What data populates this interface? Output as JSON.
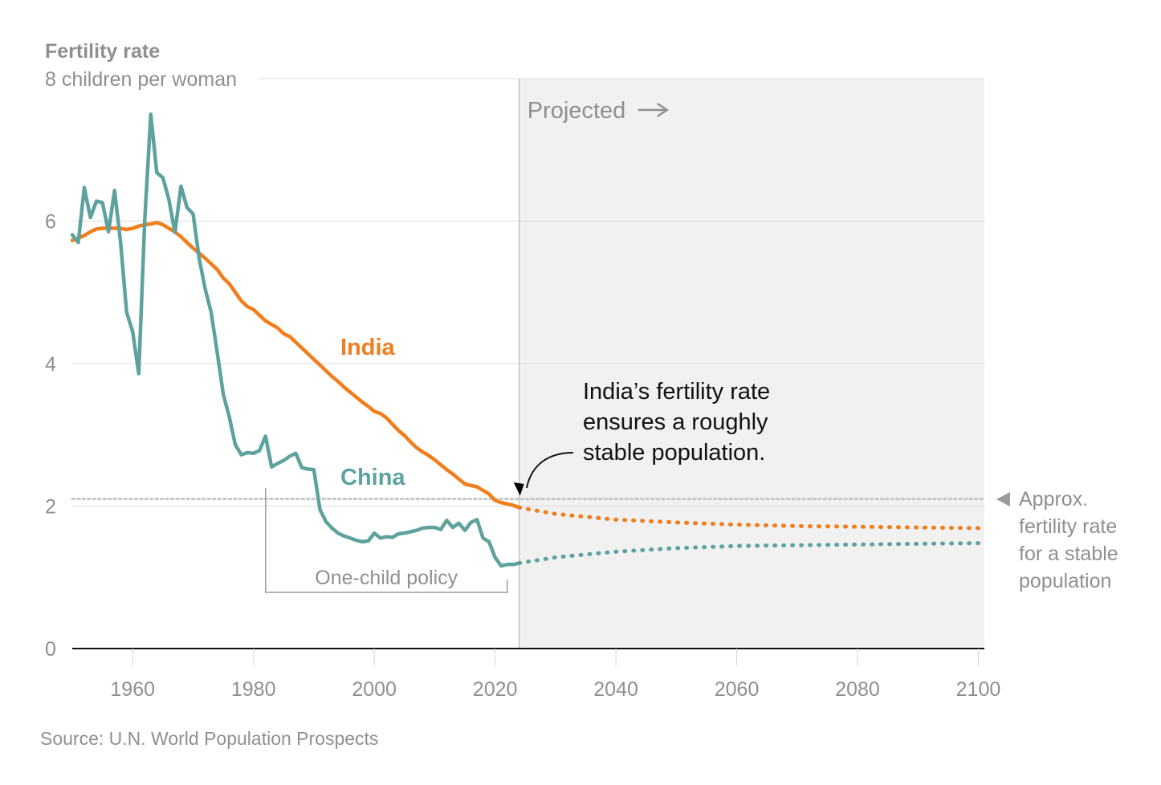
{
  "chart_data": {
    "type": "line",
    "title": "Fertility rate",
    "ylabel": "children per woman",
    "ylim": [
      0,
      8
    ],
    "xlim": [
      1950,
      2101
    ],
    "yticks": [
      {
        "value": 0,
        "label": "0"
      },
      {
        "value": 2,
        "label": "2"
      },
      {
        "value": 4,
        "label": "4"
      },
      {
        "value": 6,
        "label": "6"
      },
      {
        "value": 8,
        "label": "8 children per woman"
      }
    ],
    "xticks": [
      1960,
      1980,
      2000,
      2020,
      2040,
      2060,
      2080,
      2100
    ],
    "projection_start": 2024,
    "projected_label": "Projected",
    "replacement_rate": 2.1,
    "replacement_label": [
      "Approx.",
      "fertility rate",
      "for a stable",
      "population"
    ],
    "policy": {
      "label": "One-child policy",
      "start": 1982,
      "end": 2022
    },
    "annotation": {
      "lines": [
        "India’s fertility rate",
        "ensures a roughly",
        "stable population."
      ],
      "x": 2024,
      "y": 2.0
    },
    "source": "Source: U.N. World Population Prospects",
    "colors": {
      "India": "#f07e1d",
      "China": "#5ea29e"
    },
    "series": [
      {
        "name": "India",
        "historical": [
          [
            1950,
            5.73
          ],
          [
            1951,
            5.76
          ],
          [
            1952,
            5.8
          ],
          [
            1953,
            5.85
          ],
          [
            1954,
            5.89
          ],
          [
            1955,
            5.9
          ],
          [
            1956,
            5.9
          ],
          [
            1957,
            5.9
          ],
          [
            1958,
            5.9
          ],
          [
            1959,
            5.88
          ],
          [
            1960,
            5.9
          ],
          [
            1961,
            5.93
          ],
          [
            1962,
            5.95
          ],
          [
            1963,
            5.96
          ],
          [
            1964,
            5.98
          ],
          [
            1965,
            5.95
          ],
          [
            1966,
            5.9
          ],
          [
            1967,
            5.85
          ],
          [
            1968,
            5.78
          ],
          [
            1969,
            5.7
          ],
          [
            1970,
            5.62
          ],
          [
            1971,
            5.55
          ],
          [
            1972,
            5.48
          ],
          [
            1973,
            5.4
          ],
          [
            1974,
            5.32
          ],
          [
            1975,
            5.2
          ],
          [
            1976,
            5.12
          ],
          [
            1977,
            5.0
          ],
          [
            1978,
            4.88
          ],
          [
            1979,
            4.8
          ],
          [
            1980,
            4.76
          ],
          [
            1981,
            4.68
          ],
          [
            1982,
            4.6
          ],
          [
            1983,
            4.55
          ],
          [
            1984,
            4.5
          ],
          [
            1985,
            4.42
          ],
          [
            1986,
            4.38
          ],
          [
            1987,
            4.3
          ],
          [
            1988,
            4.22
          ],
          [
            1989,
            4.14
          ],
          [
            1990,
            4.06
          ],
          [
            1991,
            3.98
          ],
          [
            1992,
            3.9
          ],
          [
            1993,
            3.82
          ],
          [
            1994,
            3.75
          ],
          [
            1995,
            3.67
          ],
          [
            1996,
            3.6
          ],
          [
            1997,
            3.53
          ],
          [
            1998,
            3.46
          ],
          [
            1999,
            3.4
          ],
          [
            2000,
            3.33
          ],
          [
            2001,
            3.3
          ],
          [
            2002,
            3.24
          ],
          [
            2003,
            3.15
          ],
          [
            2004,
            3.06
          ],
          [
            2005,
            2.99
          ],
          [
            2006,
            2.9
          ],
          [
            2007,
            2.82
          ],
          [
            2008,
            2.76
          ],
          [
            2009,
            2.71
          ],
          [
            2010,
            2.65
          ],
          [
            2011,
            2.58
          ],
          [
            2012,
            2.51
          ],
          [
            2013,
            2.45
          ],
          [
            2014,
            2.38
          ],
          [
            2015,
            2.31
          ],
          [
            2016,
            2.29
          ],
          [
            2017,
            2.27
          ],
          [
            2018,
            2.22
          ],
          [
            2019,
            2.17
          ],
          [
            2020,
            2.08
          ],
          [
            2021,
            2.05
          ],
          [
            2022,
            2.03
          ],
          [
            2023,
            2.01
          ],
          [
            2024,
            1.98
          ]
        ],
        "projected": [
          [
            2024,
            1.98
          ],
          [
            2030,
            1.89
          ],
          [
            2040,
            1.81
          ],
          [
            2050,
            1.77
          ],
          [
            2060,
            1.74
          ],
          [
            2070,
            1.72
          ],
          [
            2080,
            1.71
          ],
          [
            2090,
            1.7
          ],
          [
            2100,
            1.69
          ]
        ]
      },
      {
        "name": "China",
        "historical": [
          [
            1950,
            5.81
          ],
          [
            1951,
            5.7
          ],
          [
            1952,
            6.47
          ],
          [
            1953,
            6.05
          ],
          [
            1954,
            6.28
          ],
          [
            1955,
            6.26
          ],
          [
            1956,
            5.85
          ],
          [
            1957,
            6.43
          ],
          [
            1958,
            5.7
          ],
          [
            1959,
            4.72
          ],
          [
            1960,
            4.45
          ],
          [
            1961,
            3.86
          ],
          [
            1962,
            6.02
          ],
          [
            1963,
            7.5
          ],
          [
            1964,
            6.68
          ],
          [
            1965,
            6.61
          ],
          [
            1966,
            6.3
          ],
          [
            1967,
            5.84
          ],
          [
            1968,
            6.49
          ],
          [
            1969,
            6.19
          ],
          [
            1970,
            6.1
          ],
          [
            1971,
            5.48
          ],
          [
            1972,
            5.05
          ],
          [
            1973,
            4.72
          ],
          [
            1974,
            4.15
          ],
          [
            1975,
            3.57
          ],
          [
            1976,
            3.25
          ],
          [
            1977,
            2.86
          ],
          [
            1978,
            2.72
          ],
          [
            1979,
            2.75
          ],
          [
            1980,
            2.74
          ],
          [
            1981,
            2.78
          ],
          [
            1982,
            2.98
          ],
          [
            1983,
            2.55
          ],
          [
            1984,
            2.6
          ],
          [
            1985,
            2.64
          ],
          [
            1986,
            2.7
          ],
          [
            1987,
            2.74
          ],
          [
            1988,
            2.54
          ],
          [
            1989,
            2.52
          ],
          [
            1990,
            2.51
          ],
          [
            1991,
            1.95
          ],
          [
            1992,
            1.78
          ],
          [
            1993,
            1.69
          ],
          [
            1994,
            1.62
          ],
          [
            1995,
            1.58
          ],
          [
            1996,
            1.55
          ],
          [
            1997,
            1.52
          ],
          [
            1998,
            1.5
          ],
          [
            1999,
            1.51
          ],
          [
            2000,
            1.62
          ],
          [
            2001,
            1.55
          ],
          [
            2002,
            1.57
          ],
          [
            2003,
            1.56
          ],
          [
            2004,
            1.61
          ],
          [
            2005,
            1.62
          ],
          [
            2006,
            1.64
          ],
          [
            2007,
            1.66
          ],
          [
            2008,
            1.69
          ],
          [
            2009,
            1.7
          ],
          [
            2010,
            1.7
          ],
          [
            2011,
            1.67
          ],
          [
            2012,
            1.8
          ],
          [
            2013,
            1.7
          ],
          [
            2014,
            1.76
          ],
          [
            2015,
            1.66
          ],
          [
            2016,
            1.77
          ],
          [
            2017,
            1.81
          ],
          [
            2018,
            1.55
          ],
          [
            2019,
            1.5
          ],
          [
            2020,
            1.28
          ],
          [
            2021,
            1.16
          ],
          [
            2022,
            1.18
          ],
          [
            2023,
            1.18
          ],
          [
            2024,
            1.2
          ]
        ],
        "projected": [
          [
            2024,
            1.2
          ],
          [
            2030,
            1.28
          ],
          [
            2040,
            1.36
          ],
          [
            2050,
            1.41
          ],
          [
            2060,
            1.44
          ],
          [
            2070,
            1.45
          ],
          [
            2080,
            1.46
          ],
          [
            2090,
            1.47
          ],
          [
            2100,
            1.48
          ]
        ]
      }
    ]
  }
}
